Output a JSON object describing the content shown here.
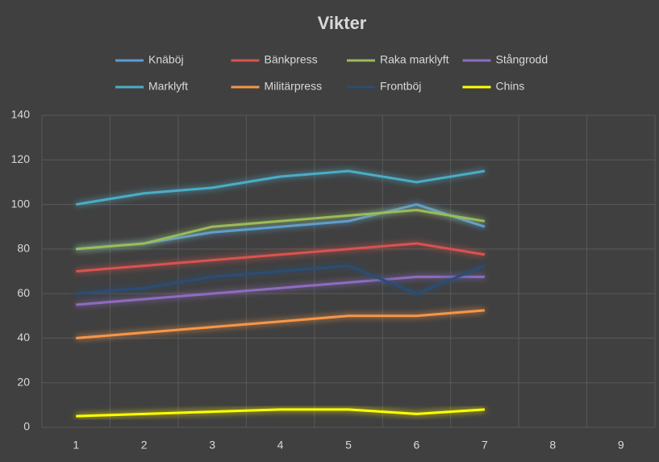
{
  "chart_data": {
    "type": "line",
    "title": "Vikter",
    "categories": [
      "1",
      "2",
      "3",
      "4",
      "5",
      "6",
      "7",
      "8",
      "9"
    ],
    "series": [
      {
        "name": "Knäböj",
        "color": "#5b9bd5",
        "values": [
          80,
          82.5,
          87.5,
          90,
          92.5,
          100,
          90,
          null,
          null
        ]
      },
      {
        "name": "Bänkpress",
        "color": "#d9534f",
        "values": [
          70,
          72.5,
          75,
          77.5,
          80,
          82.5,
          77.5,
          null,
          null
        ]
      },
      {
        "name": "Raka marklyft",
        "color": "#9bbb59",
        "values": [
          80,
          82.5,
          90,
          92.5,
          95,
          97.5,
          92.5,
          null,
          null
        ]
      },
      {
        "name": "Stångrodd",
        "color": "#8e6cc0",
        "values": [
          55,
          57.5,
          60,
          62.5,
          65,
          67.5,
          67.5,
          null,
          null
        ]
      },
      {
        "name": "Marklyft",
        "color": "#4bacc6",
        "values": [
          100,
          105,
          107.5,
          112.5,
          115,
          110,
          115,
          null,
          null
        ]
      },
      {
        "name": "Militärpress",
        "color": "#f79646",
        "values": [
          40,
          42.5,
          45,
          47.5,
          50,
          50,
          52.5,
          null,
          null
        ]
      },
      {
        "name": "Frontböj",
        "color": "#2c4d75",
        "values": [
          60,
          62.5,
          67.5,
          70,
          72.5,
          60,
          72.5,
          null,
          null
        ]
      },
      {
        "name": "Chins",
        "color": "#ffff00",
        "values": [
          5,
          6,
          7,
          8,
          8,
          6,
          8,
          null,
          null
        ]
      }
    ],
    "ylim": [
      0,
      140
    ],
    "yticks": [
      0,
      20,
      40,
      60,
      80,
      100,
      120,
      140
    ],
    "grid": true
  }
}
